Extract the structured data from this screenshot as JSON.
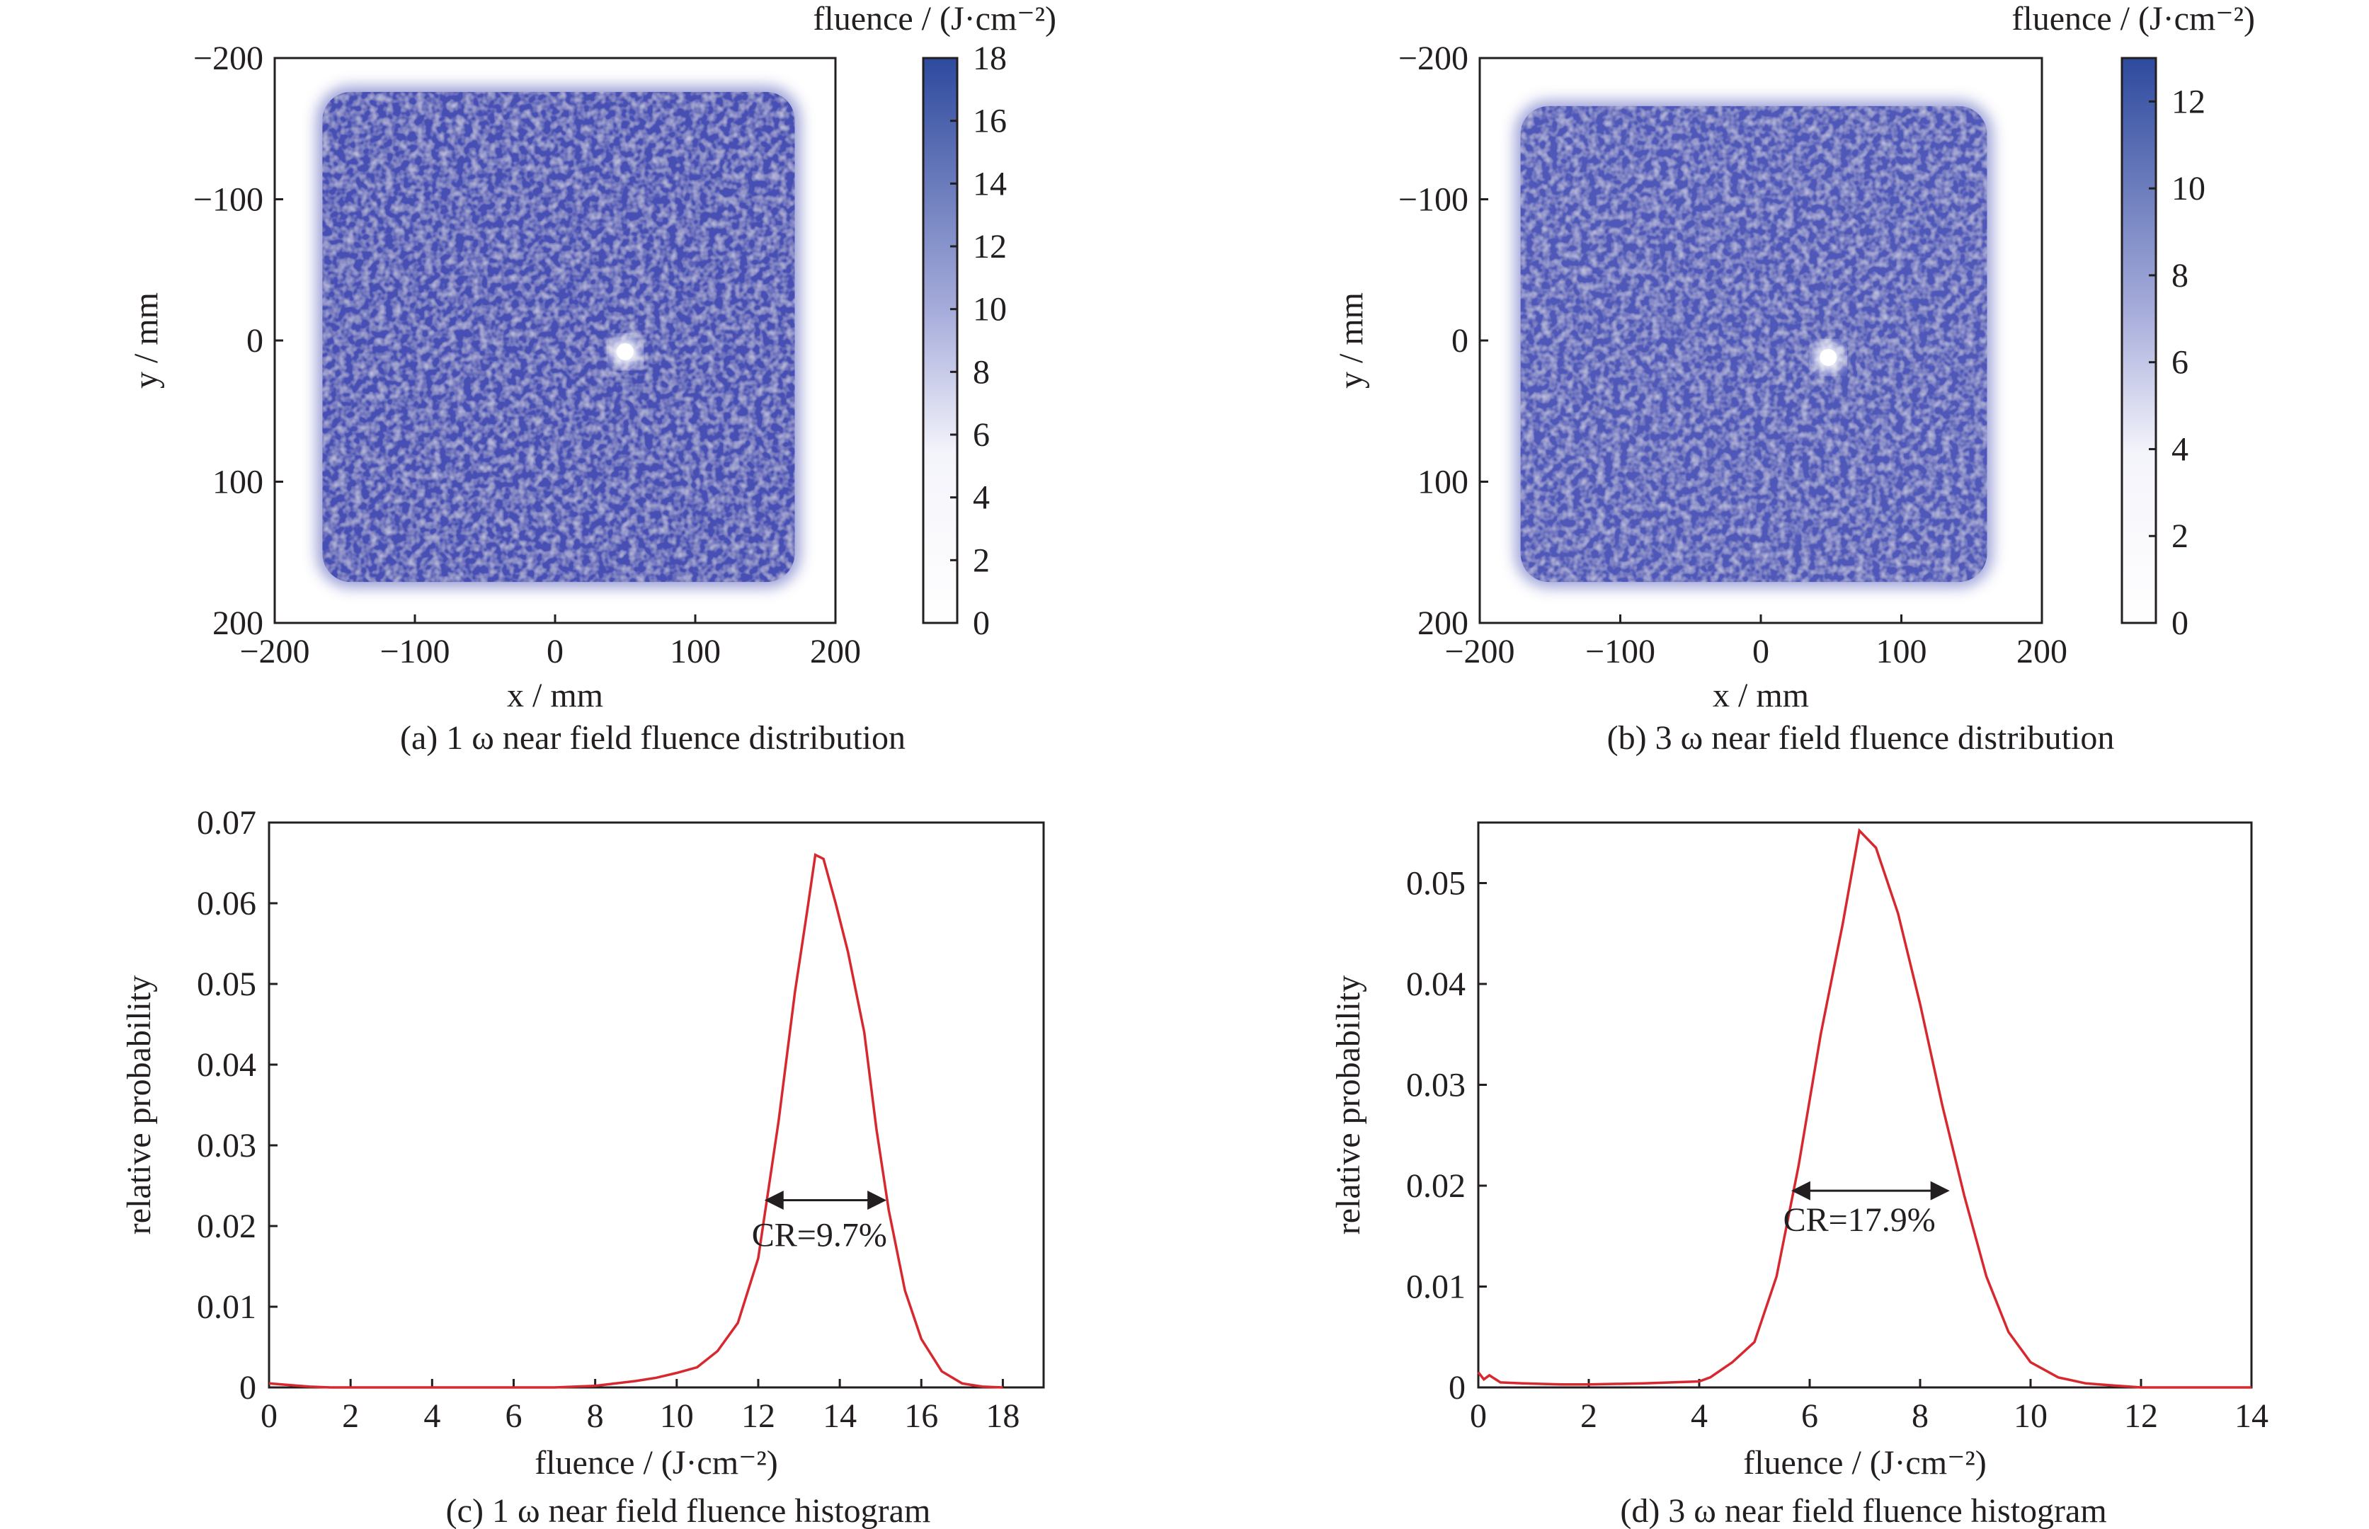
{
  "figure": {
    "panels_count": 4
  },
  "chart_data": [
    {
      "id": "a",
      "type": "heatmap",
      "caption": "(a) 1 ω near field fluence distribution",
      "xlabel": "x / mm",
      "ylabel": "y / mm",
      "xlim": [
        -200,
        200
      ],
      "ylim": [
        -200,
        200
      ],
      "y_inverted": true,
      "x_ticks": [
        "−200",
        "−100",
        "0",
        "100",
        "200"
      ],
      "y_ticks": [
        "−200",
        "−100",
        "0",
        "100",
        "200"
      ],
      "x_tick_values": [
        -200,
        -100,
        0,
        100,
        200
      ],
      "y_tick_values": [
        -200,
        -100,
        0,
        100,
        200
      ],
      "beam_extent_mm": {
        "x": [
          -170,
          175
        ],
        "y": [
          -180,
          175
        ]
      },
      "hotspot_mm": {
        "x": 50,
        "y": 8
      },
      "colorbar": {
        "label": "fluence / (J·cm⁻²)",
        "min": 0,
        "max": 18,
        "ticks": [
          "0",
          "2",
          "4",
          "6",
          "8",
          "10",
          "12",
          "14",
          "16",
          "18"
        ],
        "tick_values": [
          0,
          2,
          4,
          6,
          8,
          10,
          12,
          14,
          16,
          18
        ],
        "color_low": "#ffffff",
        "color_high": "#2e4a9e"
      },
      "fill_color": "#4650b4"
    },
    {
      "id": "b",
      "type": "heatmap",
      "caption": "(b) 3 ω near field fluence distribution",
      "xlabel": "x / mm",
      "ylabel": "y / mm",
      "xlim": [
        -200,
        200
      ],
      "ylim": [
        -200,
        200
      ],
      "y_inverted": true,
      "x_ticks": [
        "−200",
        "−100",
        "0",
        "100",
        "200"
      ],
      "y_ticks": [
        "−200",
        "−100",
        "0",
        "100",
        "200"
      ],
      "x_tick_values": [
        -200,
        -100,
        0,
        100,
        200
      ],
      "y_tick_values": [
        -200,
        -100,
        0,
        100,
        200
      ],
      "beam_extent_mm": {
        "x": [
          -175,
          165
        ],
        "y": [
          -170,
          175
        ]
      },
      "hotspot_mm": {
        "x": 48,
        "y": 12
      },
      "colorbar": {
        "label": "fluence / (J·cm⁻²)",
        "min": 0,
        "max": 13,
        "ticks": [
          "0",
          "2",
          "4",
          "6",
          "8",
          "10",
          "12"
        ],
        "tick_values": [
          0,
          2,
          4,
          6,
          8,
          10,
          12
        ],
        "color_low": "#ffffff",
        "color_high": "#2e4a9e"
      },
      "fill_color": "#5058b8"
    },
    {
      "id": "c",
      "type": "line",
      "caption": "(c) 1 ω near field fluence histogram",
      "xlabel": "fluence / (J·cm⁻²)",
      "ylabel": "relative probability",
      "xlim": [
        0,
        19
      ],
      "ylim": [
        0,
        0.07
      ],
      "x_ticks": [
        "0",
        "2",
        "4",
        "6",
        "8",
        "10",
        "12",
        "14",
        "16",
        "18"
      ],
      "x_tick_values": [
        0,
        2,
        4,
        6,
        8,
        10,
        12,
        14,
        16,
        18
      ],
      "y_ticks": [
        "0",
        "0.01",
        "0.02",
        "0.03",
        "0.04",
        "0.05",
        "0.06",
        "0.07"
      ],
      "y_tick_values": [
        0,
        0.01,
        0.02,
        0.03,
        0.04,
        0.05,
        0.06,
        0.07
      ],
      "series": [
        {
          "name": "1ω histogram",
          "color": "#d7282f",
          "x": [
            0,
            0.5,
            1,
            1.5,
            2,
            3,
            4,
            5,
            6,
            7,
            8,
            9,
            9.5,
            10,
            10.5,
            11,
            11.5,
            12,
            12.5,
            12.9,
            13.2,
            13.4,
            13.6,
            13.9,
            14.2,
            14.6,
            14.9,
            15.2,
            15.6,
            16,
            16.5,
            17,
            17.5,
            18
          ],
          "y": [
            0.0005,
            0.0003,
            0.0001,
            0.0,
            0.0,
            0.0,
            0.0,
            0.0,
            0.0,
            0.0,
            0.0002,
            0.0008,
            0.0012,
            0.0018,
            0.0025,
            0.0045,
            0.008,
            0.016,
            0.033,
            0.049,
            0.059,
            0.066,
            0.0655,
            0.06,
            0.054,
            0.044,
            0.032,
            0.022,
            0.012,
            0.006,
            0.002,
            0.0005,
            0.0001,
            0.0
          ]
        }
      ],
      "annotation": {
        "text": "CR=9.7%",
        "x": 13.5,
        "y": 0.0175,
        "arrow_x": [
          12.2,
          15.1
        ],
        "arrow_y": 0.0232
      }
    },
    {
      "id": "d",
      "type": "line",
      "caption": "(d) 3 ω near field fluence histogram",
      "xlabel": "fluence / (J·cm⁻²)",
      "ylabel": "relative probability",
      "xlim": [
        0,
        14
      ],
      "ylim": [
        0,
        0.056
      ],
      "x_ticks": [
        "0",
        "2",
        "4",
        "6",
        "8",
        "10",
        "12",
        "14"
      ],
      "x_tick_values": [
        0,
        2,
        4,
        6,
        8,
        10,
        12,
        14
      ],
      "y_ticks": [
        "0",
        "0.01",
        "0.02",
        "0.03",
        "0.04",
        "0.05"
      ],
      "y_tick_values": [
        0,
        0.01,
        0.02,
        0.03,
        0.04,
        0.05
      ],
      "series": [
        {
          "name": "3ω histogram",
          "color": "#d7282f",
          "x": [
            0,
            0.1,
            0.2,
            0.4,
            0.8,
            1.5,
            2,
            3,
            4,
            4.2,
            4.6,
            5,
            5.4,
            5.8,
            6.2,
            6.6,
            6.9,
            7.2,
            7.6,
            8,
            8.4,
            8.8,
            9.2,
            9.6,
            10,
            10.5,
            11,
            11.5,
            12,
            13,
            14
          ],
          "y": [
            0.0015,
            0.0008,
            0.0012,
            0.0005,
            0.0004,
            0.0003,
            0.0003,
            0.0004,
            0.0006,
            0.001,
            0.0025,
            0.0045,
            0.011,
            0.022,
            0.035,
            0.046,
            0.0552,
            0.0535,
            0.047,
            0.038,
            0.028,
            0.019,
            0.011,
            0.0055,
            0.0025,
            0.001,
            0.0004,
            0.0002,
            0.0,
            0.0,
            0.0
          ]
        }
      ],
      "annotation": {
        "text": "CR=17.9%",
        "x": 6.9,
        "y": 0.0155,
        "arrow_x": [
          5.7,
          8.5
        ],
        "arrow_y": 0.0195
      }
    }
  ]
}
